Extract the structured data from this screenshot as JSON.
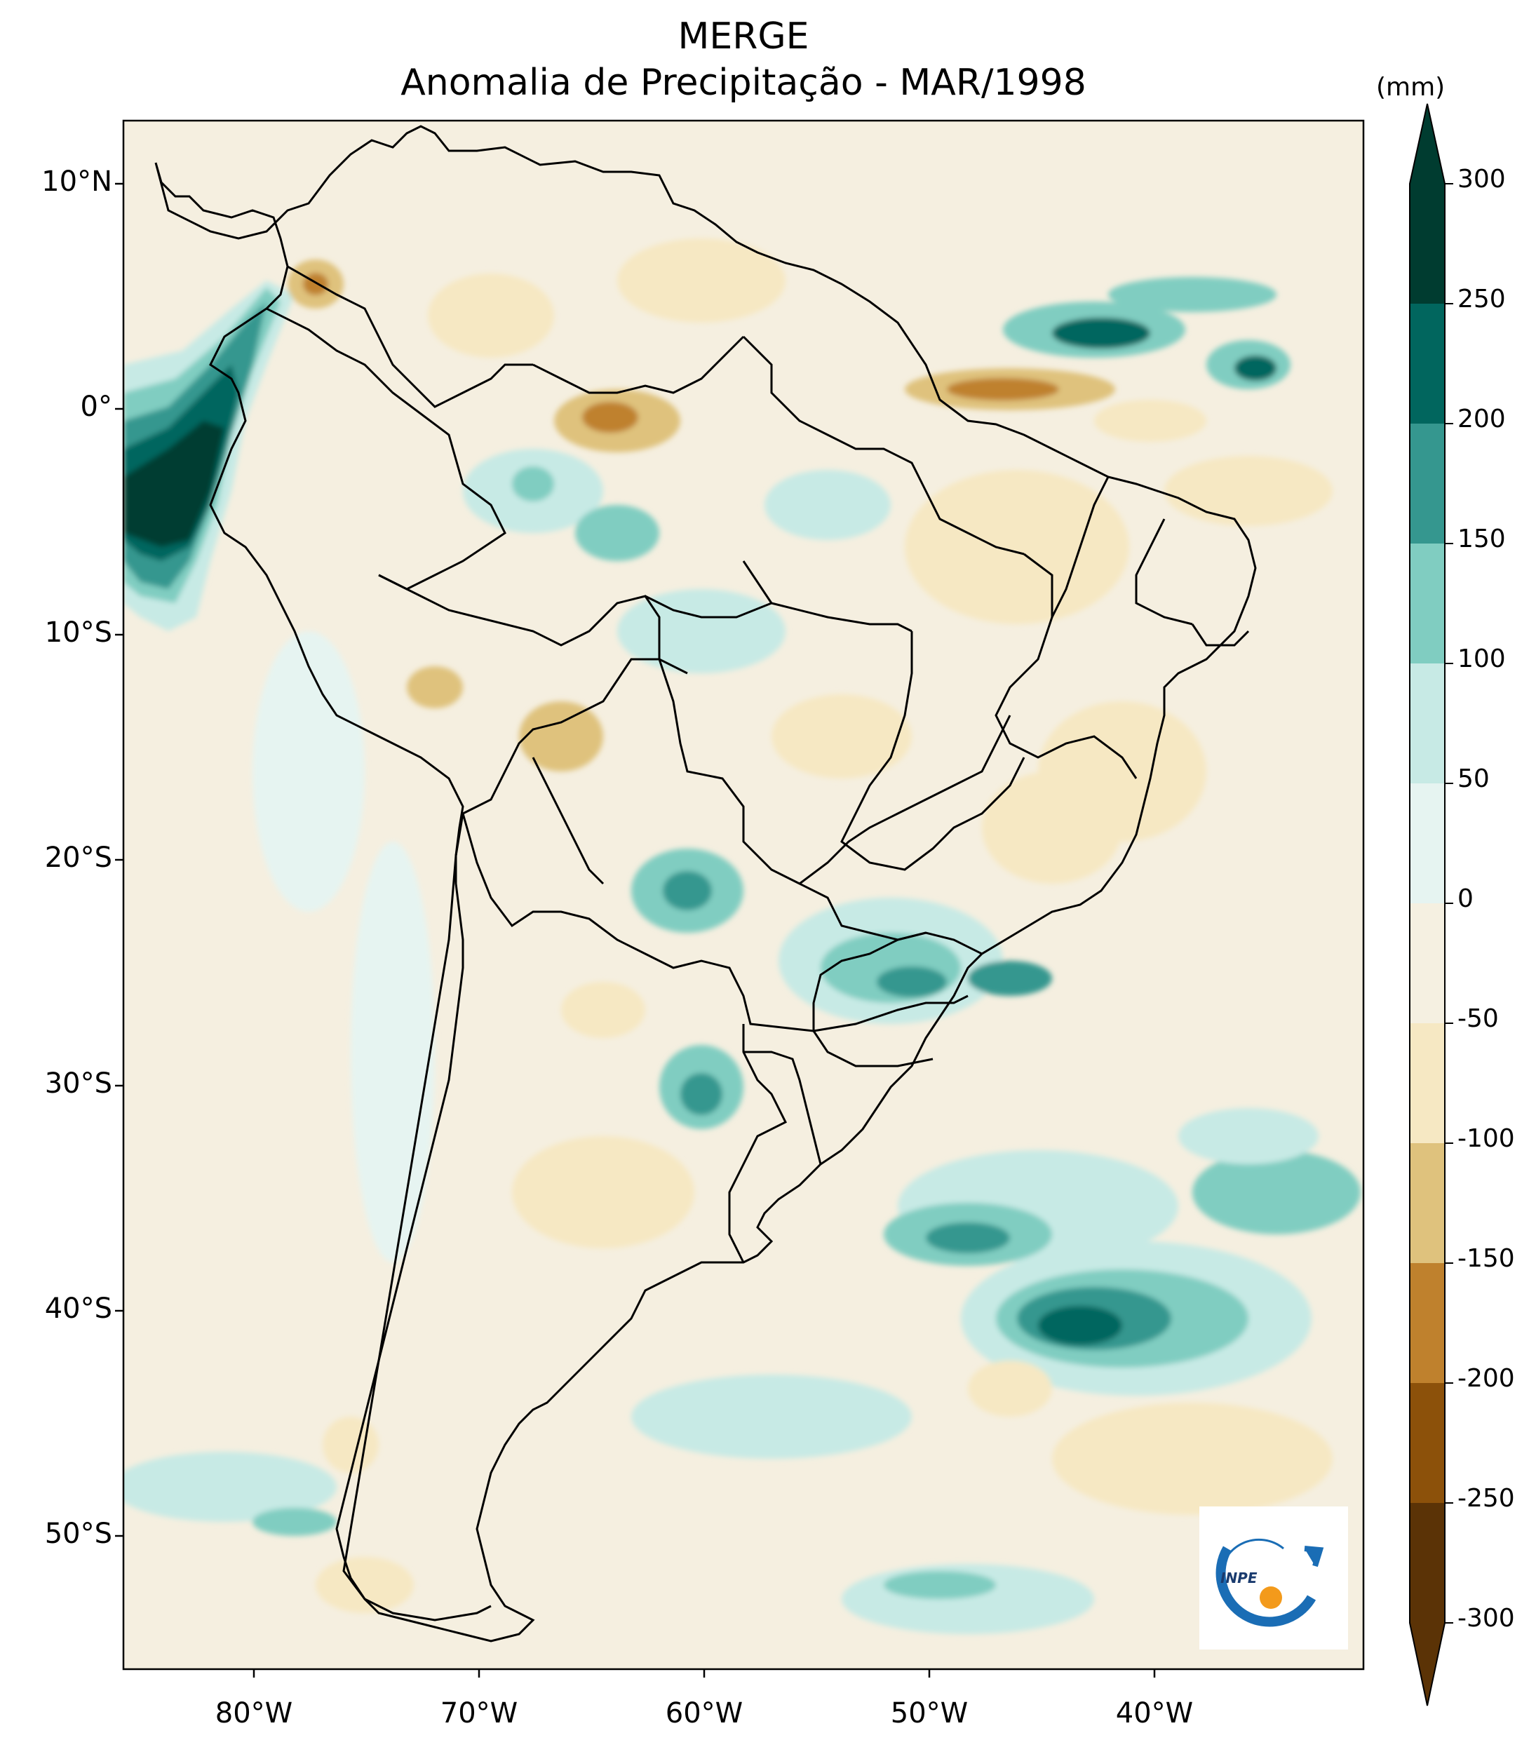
{
  "title": {
    "line1": "MERGE",
    "line2": "Anomalia de Precipitação - MAR/1998"
  },
  "axes": {
    "lat_ticks": [
      "10°N",
      "0°",
      "10°S",
      "20°S",
      "30°S",
      "40°S",
      "50°S"
    ],
    "lon_ticks": [
      "80°W",
      "70°W",
      "60°W",
      "50°W",
      "40°W"
    ]
  },
  "colorbar": {
    "unit": "(mm)",
    "labels": [
      "300",
      "250",
      "200",
      "150",
      "100",
      "50",
      "0",
      "-50",
      "-100",
      "-150",
      "-200",
      "-250",
      "-300"
    ],
    "colors": [
      "#003c30",
      "#01665e",
      "#35978f",
      "#80cdc1",
      "#c7eae5",
      "#e6f4f1",
      "#f5f0e1",
      "#f6e8c3",
      "#dfc27d",
      "#bf812d",
      "#8c510a",
      "#5b3306"
    ]
  },
  "logo": {
    "text": "INPE"
  }
}
